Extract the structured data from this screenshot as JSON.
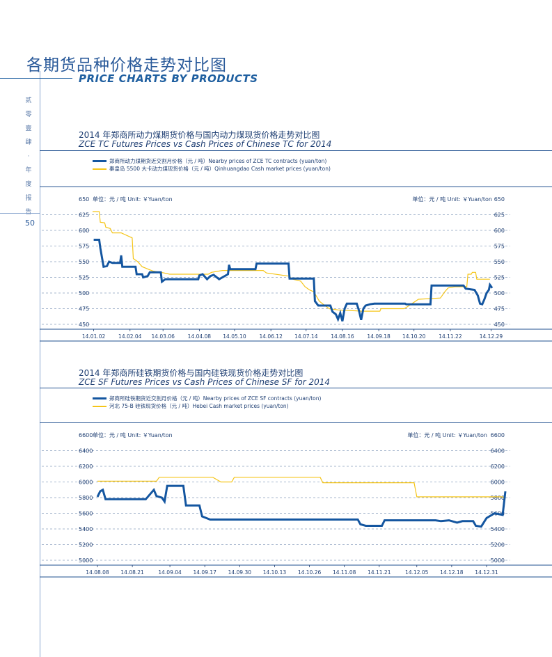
{
  "header": {
    "title_cn": "各期货品种价格走势对比图",
    "title_en": "PRICE CHARTS BY PRODUCTS"
  },
  "sidebar": {
    "chars": [
      "贰",
      "零",
      "壹",
      "肆",
      "·",
      "年",
      "度",
      "报",
      "告"
    ],
    "page_number": "50"
  },
  "colors": {
    "futures": "#1456a0",
    "cash": "#f5c518",
    "grid": "#8aa0bf",
    "text": "#1f3f73"
  },
  "chart_data": [
    {
      "type": "line",
      "title_cn": "2014 年郑商所动力煤期货价格与国内动力煤现货价格走势对比图",
      "title_en": "ZCE TC Futures Prices vs Cash Prices of Chinese TC for 2014",
      "unit_left": "单位：元 / 吨  Unit: ￥Yuan/ton",
      "unit_right": "单位：元 / 吨  Unit: ￥Yuan/ton",
      "ylim": [
        450,
        650
      ],
      "yticks": [
        450,
        475,
        500,
        525,
        550,
        575,
        600,
        625,
        650
      ],
      "xlim": [
        1,
        364
      ],
      "xticks": [
        {
          "label": "14.01.02",
          "day": 2
        },
        {
          "label": "14.02.04",
          "day": 35
        },
        {
          "label": "14.03.06",
          "day": 65
        },
        {
          "label": "14.04.08",
          "day": 98
        },
        {
          "label": "14.05.10",
          "day": 130
        },
        {
          "label": "14.06.12",
          "day": 163
        },
        {
          "label": "14.07.14",
          "day": 195
        },
        {
          "label": "14.08.16",
          "day": 228
        },
        {
          "label": "14.09.18",
          "day": 261
        },
        {
          "label": "14.10.20",
          "day": 293
        },
        {
          "label": "14.11.22",
          "day": 326
        },
        {
          "label": "14.12.29",
          "day": 363
        }
      ],
      "series": [
        {
          "name": "郑商所动力煤期货近交割月价格（元 / 吨）Nearby prices of ZCE TC contracts (yuan/ton)",
          "role": "futures",
          "points": [
            [
              2,
              585
            ],
            [
              7,
              585
            ],
            [
              8,
              572
            ],
            [
              11,
              542
            ],
            [
              14,
              543
            ],
            [
              16,
              550
            ],
            [
              19,
              548
            ],
            [
              26,
              548
            ],
            [
              27,
              560
            ],
            [
              28,
              542
            ],
            [
              40,
              542
            ],
            [
              41,
              530
            ],
            [
              46,
              530
            ],
            [
              47,
              525
            ],
            [
              51,
              527
            ],
            [
              53,
              533
            ],
            [
              63,
              533
            ],
            [
              64,
              518
            ],
            [
              67,
              522
            ],
            [
              97,
              522
            ],
            [
              98,
              528
            ],
            [
              101,
              530
            ],
            [
              105,
              522
            ],
            [
              108,
              527
            ],
            [
              111,
              529
            ],
            [
              116,
              522
            ],
            [
              124,
              530
            ],
            [
              125,
              545
            ],
            [
              126,
              538
            ],
            [
              149,
              538
            ],
            [
              150,
              547
            ],
            [
              179,
              547
            ],
            [
              180,
              523
            ],
            [
              202,
              523
            ],
            [
              203,
              487
            ],
            [
              206,
              480
            ],
            [
              217,
              480
            ],
            [
              219,
              470
            ],
            [
              222,
              466
            ],
            [
              224,
              458
            ],
            [
              226,
              468
            ],
            [
              228,
              455
            ],
            [
              230,
              475
            ],
            [
              232,
              483
            ],
            [
              241,
              483
            ],
            [
              243,
              472
            ],
            [
              245,
              457
            ],
            [
              247,
              475
            ],
            [
              249,
              480
            ],
            [
              253,
              482
            ],
            [
              257,
              483
            ],
            [
              285,
              483
            ],
            [
              286,
              482
            ],
            [
              308,
              482
            ],
            [
              309,
              512
            ],
            [
              338,
              512
            ],
            [
              340,
              507
            ],
            [
              348,
              505
            ],
            [
              351,
              496
            ],
            [
              353,
              483
            ],
            [
              355,
              482
            ],
            [
              357,
              490
            ],
            [
              359,
              500
            ],
            [
              361,
              505
            ],
            [
              362,
              513
            ],
            [
              364,
              508
            ]
          ]
        },
        {
          "name": "秦皇岛 5500 大卡动力煤现货价格（元 / 吨）Qinhuangdao Cash market prices (yuan/ton)",
          "role": "cash",
          "points": [
            [
              1,
              630
            ],
            [
              7,
              630
            ],
            [
              8,
              613
            ],
            [
              12,
              612
            ],
            [
              13,
              605
            ],
            [
              17,
              603
            ],
            [
              19,
              596
            ],
            [
              27,
              596
            ],
            [
              37,
              588
            ],
            [
              38,
              555
            ],
            [
              42,
              550
            ],
            [
              46,
              542
            ],
            [
              53,
              537
            ],
            [
              56,
              535
            ],
            [
              66,
              532
            ],
            [
              71,
              530
            ],
            [
              106,
              530
            ],
            [
              109,
              533
            ],
            [
              119,
              536
            ],
            [
              156,
              536
            ],
            [
              159,
              532
            ],
            [
              179,
              527
            ],
            [
              183,
              522
            ],
            [
              190,
              519
            ],
            [
              194,
              510
            ],
            [
              198,
              505
            ],
            [
              202,
              502
            ],
            [
              207,
              487
            ],
            [
              212,
              480
            ],
            [
              216,
              475
            ],
            [
              224,
              473
            ],
            [
              246,
              471
            ],
            [
              262,
              471
            ],
            [
              263,
              475
            ],
            [
              284,
              475
            ],
            [
              287,
              478
            ],
            [
              297,
              490
            ],
            [
              317,
              492
            ],
            [
              321,
              502
            ],
            [
              324,
              508
            ],
            [
              330,
              510
            ],
            [
              341,
              510
            ],
            [
              342,
              530
            ],
            [
              345,
              530
            ],
            [
              346,
              533
            ],
            [
              349,
              533
            ],
            [
              350,
              522
            ],
            [
              362,
              522
            ]
          ]
        }
      ]
    },
    {
      "type": "line",
      "title_cn": "2014 年郑商所硅铁期货价格与国内硅铁现货价格走势对比图",
      "title_en": "ZCE SF Futures Prices vs Cash Prices of Chinese SF for 2014",
      "unit_left": "单位：元 / 吨  Unit: ￥Yuan/ton",
      "unit_right": "单位：元 / 吨  Unit: ￥Yuan/ton",
      "ylim": [
        5000,
        6600
      ],
      "yticks": [
        5000,
        5200,
        5400,
        5600,
        5800,
        6000,
        6200,
        6400,
        6600
      ],
      "xlim": [
        0,
        145
      ],
      "xticks": [
        {
          "label": "14.08.08",
          "day": 0
        },
        {
          "label": "14.08.21",
          "day": 13
        },
        {
          "label": "14.09.04",
          "day": 27
        },
        {
          "label": "14.09.17",
          "day": 40
        },
        {
          "label": "14.09.30",
          "day": 53
        },
        {
          "label": "14.10.13",
          "day": 66
        },
        {
          "label": "14.10.26",
          "day": 79
        },
        {
          "label": "14.11.08",
          "day": 92
        },
        {
          "label": "14.11.21",
          "day": 105
        },
        {
          "label": "14.12.05",
          "day": 119
        },
        {
          "label": "14.12.18",
          "day": 132
        },
        {
          "label": "14.12.31",
          "day": 145
        }
      ],
      "series": [
        {
          "name": "郑商所硅铁期货近交割月价格（元 / 吨）Nearby prices of ZCE SF contracts (yuan/ton)",
          "role": "futures",
          "points": [
            [
              0,
              5810
            ],
            [
              1,
              5880
            ],
            [
              2,
              5900
            ],
            [
              3,
              5780
            ],
            [
              18,
              5780
            ],
            [
              21,
              5900
            ],
            [
              22,
              5820
            ],
            [
              24,
              5800
            ],
            [
              25,
              5750
            ],
            [
              26,
              5950
            ],
            [
              32,
              5950
            ],
            [
              33,
              5700
            ],
            [
              38,
              5700
            ],
            [
              39,
              5560
            ],
            [
              42,
              5520
            ],
            [
              97,
              5520
            ],
            [
              98,
              5460
            ],
            [
              100,
              5440
            ],
            [
              106,
              5440
            ],
            [
              107,
              5510
            ],
            [
              126,
              5510
            ],
            [
              128,
              5500
            ],
            [
              131,
              5510
            ],
            [
              134,
              5480
            ],
            [
              136,
              5500
            ],
            [
              140,
              5500
            ],
            [
              141,
              5440
            ],
            [
              143,
              5430
            ],
            [
              145,
              5540
            ],
            [
              148,
              5600
            ],
            [
              151,
              5580
            ],
            [
              152,
              5880
            ]
          ]
        },
        {
          "name": "河北 75-B 硅铁现货价格（元 / 吨）Hebei Cash market prices (yuan/ton)",
          "role": "cash",
          "points": [
            [
              0,
              6010
            ],
            [
              22,
              6010
            ],
            [
              23,
              6060
            ],
            [
              43,
              6060
            ],
            [
              46,
              6000
            ],
            [
              50,
              6000
            ],
            [
              51,
              6060
            ],
            [
              83,
              6060
            ],
            [
              84,
              5990
            ],
            [
              118,
              5990
            ],
            [
              119,
              5810
            ],
            [
              151,
              5810
            ],
            [
              152,
              5780
            ]
          ]
        }
      ]
    }
  ]
}
